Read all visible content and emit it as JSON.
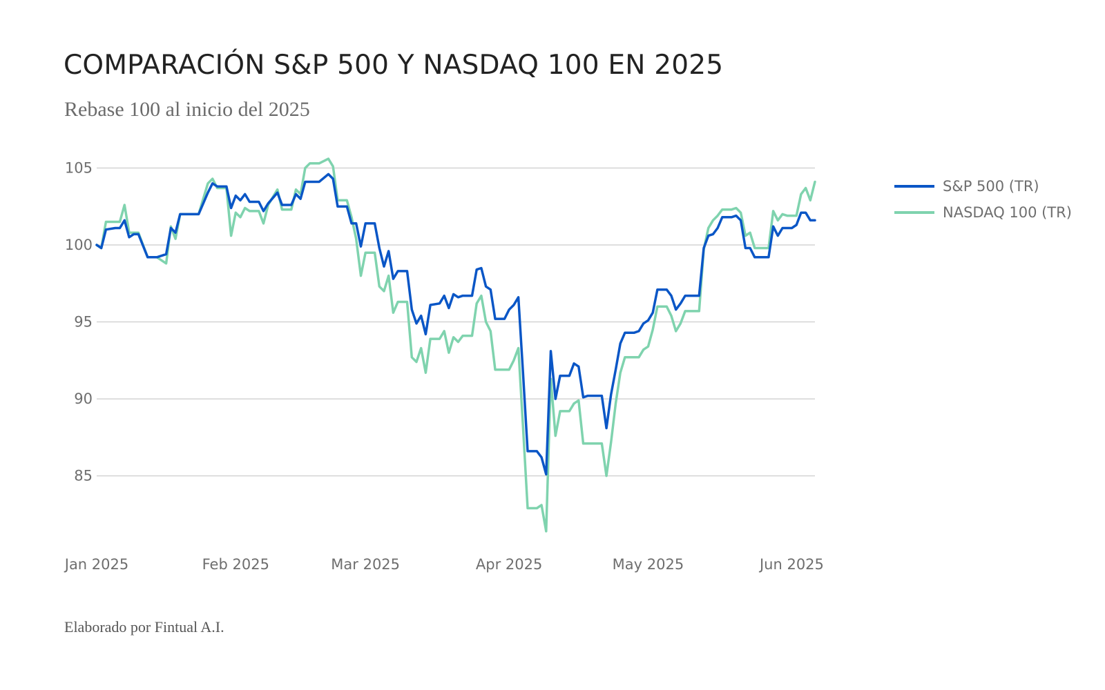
{
  "chart_data": {
    "type": "line",
    "title": "COMPARACIÓN S&P 500 Y NASDAQ 100 EN 2025",
    "subtitle": "Rebase 100 al inicio del 2025",
    "footer": "Elaborado por Fintual A.I.",
    "xlabel": "",
    "ylabel": "",
    "ylim": [
      80.5,
      106.5
    ],
    "y_ticks": [
      85,
      90,
      95,
      100,
      105
    ],
    "x_ticks": [
      {
        "label": "Jan 2025",
        "date": "2025-01-02"
      },
      {
        "label": "Feb 2025",
        "date": "2025-02-01"
      },
      {
        "label": "Mar 2025",
        "date": "2025-03-01"
      },
      {
        "label": "Apr 2025",
        "date": "2025-04-01"
      },
      {
        "label": "May 2025",
        "date": "2025-05-01"
      },
      {
        "label": "Jun 2025",
        "date": "2025-06-01"
      }
    ],
    "x_start": "2025-01-02",
    "x_end": "2025-06-06",
    "grid": true,
    "legend_position": "right",
    "series": [
      {
        "name": "S&P 500 (TR)",
        "color": "#0a56c6",
        "points": [
          [
            "2025-01-02",
            100.0
          ],
          [
            "2025-01-03",
            99.8
          ],
          [
            "2025-01-04",
            101.0
          ],
          [
            "2025-01-06",
            101.1
          ],
          [
            "2025-01-07",
            101.1
          ],
          [
            "2025-01-08",
            101.6
          ],
          [
            "2025-01-09",
            100.5
          ],
          [
            "2025-01-10",
            100.7
          ],
          [
            "2025-01-11",
            100.7
          ],
          [
            "2025-01-13",
            99.2
          ],
          [
            "2025-01-15",
            99.2
          ],
          [
            "2025-01-17",
            99.4
          ],
          [
            "2025-01-18",
            101.1
          ],
          [
            "2025-01-19",
            100.8
          ],
          [
            "2025-01-20",
            102.0
          ],
          [
            "2025-01-22",
            102.0
          ],
          [
            "2025-01-24",
            102.0
          ],
          [
            "2025-01-26",
            103.4
          ],
          [
            "2025-01-27",
            104.0
          ],
          [
            "2025-01-28",
            103.8
          ],
          [
            "2025-01-30",
            103.8
          ],
          [
            "2025-01-31",
            102.4
          ],
          [
            "2025-02-01",
            103.2
          ],
          [
            "2025-02-02",
            102.9
          ],
          [
            "2025-02-03",
            103.3
          ],
          [
            "2025-02-04",
            102.8
          ],
          [
            "2025-02-06",
            102.8
          ],
          [
            "2025-02-07",
            102.2
          ],
          [
            "2025-02-08",
            102.7
          ],
          [
            "2025-02-10",
            103.4
          ],
          [
            "2025-02-11",
            102.6
          ],
          [
            "2025-02-13",
            102.6
          ],
          [
            "2025-02-14",
            103.3
          ],
          [
            "2025-02-15",
            103.0
          ],
          [
            "2025-02-16",
            104.1
          ],
          [
            "2025-02-19",
            104.1
          ],
          [
            "2025-02-21",
            104.6
          ],
          [
            "2025-02-22",
            104.3
          ],
          [
            "2025-02-23",
            102.5
          ],
          [
            "2025-02-25",
            102.5
          ],
          [
            "2025-02-26",
            101.4
          ],
          [
            "2025-02-27",
            101.4
          ],
          [
            "2025-02-28",
            99.9
          ],
          [
            "2025-03-01",
            101.4
          ],
          [
            "2025-03-03",
            101.4
          ],
          [
            "2025-03-04",
            99.8
          ],
          [
            "2025-03-05",
            98.6
          ],
          [
            "2025-03-06",
            99.6
          ],
          [
            "2025-03-07",
            97.8
          ],
          [
            "2025-03-08",
            98.3
          ],
          [
            "2025-03-10",
            98.3
          ],
          [
            "2025-03-11",
            95.8
          ],
          [
            "2025-03-12",
            94.9
          ],
          [
            "2025-03-13",
            95.4
          ],
          [
            "2025-03-14",
            94.2
          ],
          [
            "2025-03-15",
            96.1
          ],
          [
            "2025-03-17",
            96.2
          ],
          [
            "2025-03-18",
            96.7
          ],
          [
            "2025-03-19",
            95.9
          ],
          [
            "2025-03-20",
            96.8
          ],
          [
            "2025-03-21",
            96.6
          ],
          [
            "2025-03-22",
            96.7
          ],
          [
            "2025-03-24",
            96.7
          ],
          [
            "2025-03-25",
            98.4
          ],
          [
            "2025-03-26",
            98.5
          ],
          [
            "2025-03-27",
            97.3
          ],
          [
            "2025-03-28",
            97.1
          ],
          [
            "2025-03-29",
            95.2
          ],
          [
            "2025-03-31",
            95.2
          ],
          [
            "2025-04-01",
            95.8
          ],
          [
            "2025-04-02",
            96.1
          ],
          [
            "2025-04-03",
            96.6
          ],
          [
            "2025-04-04",
            91.7
          ],
          [
            "2025-04-05",
            86.6
          ],
          [
            "2025-04-07",
            86.6
          ],
          [
            "2025-04-08",
            86.2
          ],
          [
            "2025-04-09",
            85.1
          ],
          [
            "2025-04-10",
            93.1
          ],
          [
            "2025-04-11",
            90.0
          ],
          [
            "2025-04-12",
            91.5
          ],
          [
            "2025-04-14",
            91.5
          ],
          [
            "2025-04-15",
            92.3
          ],
          [
            "2025-04-16",
            92.1
          ],
          [
            "2025-04-17",
            90.1
          ],
          [
            "2025-04-18",
            90.2
          ],
          [
            "2025-04-21",
            90.2
          ],
          [
            "2025-04-22",
            88.1
          ],
          [
            "2025-04-23",
            90.3
          ],
          [
            "2025-04-24",
            91.9
          ],
          [
            "2025-04-25",
            93.6
          ],
          [
            "2025-04-26",
            94.3
          ],
          [
            "2025-04-28",
            94.3
          ],
          [
            "2025-04-29",
            94.4
          ],
          [
            "2025-04-30",
            94.9
          ],
          [
            "2025-05-01",
            95.1
          ],
          [
            "2025-05-02",
            95.6
          ],
          [
            "2025-05-03",
            97.1
          ],
          [
            "2025-05-05",
            97.1
          ],
          [
            "2025-05-06",
            96.7
          ],
          [
            "2025-05-07",
            95.8
          ],
          [
            "2025-05-08",
            96.2
          ],
          [
            "2025-05-09",
            96.7
          ],
          [
            "2025-05-12",
            96.7
          ],
          [
            "2025-05-13",
            99.8
          ],
          [
            "2025-05-14",
            100.6
          ],
          [
            "2025-05-15",
            100.7
          ],
          [
            "2025-05-16",
            101.1
          ],
          [
            "2025-05-17",
            101.8
          ],
          [
            "2025-05-19",
            101.8
          ],
          [
            "2025-05-20",
            101.9
          ],
          [
            "2025-05-21",
            101.6
          ],
          [
            "2025-05-22",
            99.8
          ],
          [
            "2025-05-23",
            99.8
          ],
          [
            "2025-05-24",
            99.2
          ],
          [
            "2025-05-27",
            99.2
          ],
          [
            "2025-05-28",
            101.2
          ],
          [
            "2025-05-29",
            100.6
          ],
          [
            "2025-05-30",
            101.1
          ],
          [
            "2025-06-01",
            101.1
          ],
          [
            "2025-06-02",
            101.3
          ],
          [
            "2025-06-03",
            102.1
          ],
          [
            "2025-06-04",
            102.1
          ],
          [
            "2025-06-05",
            101.6
          ],
          [
            "2025-06-06",
            101.6
          ]
        ]
      },
      {
        "name": "NASDAQ 100 (TR)",
        "color": "#7fd3ae",
        "points": [
          [
            "2025-01-02",
            100.0
          ],
          [
            "2025-01-03",
            99.8
          ],
          [
            "2025-01-04",
            101.5
          ],
          [
            "2025-01-06",
            101.5
          ],
          [
            "2025-01-07",
            101.5
          ],
          [
            "2025-01-08",
            102.6
          ],
          [
            "2025-01-09",
            100.8
          ],
          [
            "2025-01-10",
            100.8
          ],
          [
            "2025-01-11",
            100.8
          ],
          [
            "2025-01-13",
            99.2
          ],
          [
            "2025-01-15",
            99.2
          ],
          [
            "2025-01-17",
            98.8
          ],
          [
            "2025-01-18",
            101.2
          ],
          [
            "2025-01-19",
            100.4
          ],
          [
            "2025-01-20",
            102.0
          ],
          [
            "2025-01-22",
            102.0
          ],
          [
            "2025-01-24",
            102.0
          ],
          [
            "2025-01-26",
            104.0
          ],
          [
            "2025-01-27",
            104.3
          ],
          [
            "2025-01-28",
            103.7
          ],
          [
            "2025-01-30",
            103.7
          ],
          [
            "2025-01-31",
            100.6
          ],
          [
            "2025-02-01",
            102.1
          ],
          [
            "2025-02-02",
            101.8
          ],
          [
            "2025-02-03",
            102.4
          ],
          [
            "2025-02-04",
            102.2
          ],
          [
            "2025-02-06",
            102.2
          ],
          [
            "2025-02-07",
            101.4
          ],
          [
            "2025-02-08",
            102.6
          ],
          [
            "2025-02-10",
            103.6
          ],
          [
            "2025-02-11",
            102.3
          ],
          [
            "2025-02-13",
            102.3
          ],
          [
            "2025-02-14",
            103.6
          ],
          [
            "2025-02-15",
            103.3
          ],
          [
            "2025-02-16",
            105.0
          ],
          [
            "2025-02-17",
            105.3
          ],
          [
            "2025-02-19",
            105.3
          ],
          [
            "2025-02-21",
            105.6
          ],
          [
            "2025-02-22",
            105.1
          ],
          [
            "2025-02-23",
            102.9
          ],
          [
            "2025-02-25",
            102.9
          ],
          [
            "2025-02-26",
            101.8
          ],
          [
            "2025-02-27",
            100.4
          ],
          [
            "2025-02-28",
            98.0
          ],
          [
            "2025-03-01",
            99.5
          ],
          [
            "2025-03-03",
            99.5
          ],
          [
            "2025-03-04",
            97.3
          ],
          [
            "2025-03-05",
            97.0
          ],
          [
            "2025-03-06",
            98.0
          ],
          [
            "2025-03-07",
            95.6
          ],
          [
            "2025-03-08",
            96.3
          ],
          [
            "2025-03-10",
            96.3
          ],
          [
            "2025-03-11",
            92.7
          ],
          [
            "2025-03-12",
            92.4
          ],
          [
            "2025-03-13",
            93.3
          ],
          [
            "2025-03-14",
            91.7
          ],
          [
            "2025-03-15",
            93.9
          ],
          [
            "2025-03-17",
            93.9
          ],
          [
            "2025-03-18",
            94.4
          ],
          [
            "2025-03-19",
            93.0
          ],
          [
            "2025-03-20",
            94.0
          ],
          [
            "2025-03-21",
            93.7
          ],
          [
            "2025-03-22",
            94.1
          ],
          [
            "2025-03-24",
            94.1
          ],
          [
            "2025-03-25",
            96.2
          ],
          [
            "2025-03-26",
            96.7
          ],
          [
            "2025-03-27",
            95.0
          ],
          [
            "2025-03-28",
            94.4
          ],
          [
            "2025-03-29",
            91.9
          ],
          [
            "2025-03-31",
            91.9
          ],
          [
            "2025-04-01",
            91.9
          ],
          [
            "2025-04-02",
            92.5
          ],
          [
            "2025-04-03",
            93.3
          ],
          [
            "2025-04-04",
            88.2
          ],
          [
            "2025-04-05",
            82.9
          ],
          [
            "2025-04-07",
            82.9
          ],
          [
            "2025-04-08",
            83.1
          ],
          [
            "2025-04-09",
            81.4
          ],
          [
            "2025-04-10",
            91.3
          ],
          [
            "2025-04-11",
            87.6
          ],
          [
            "2025-04-12",
            89.2
          ],
          [
            "2025-04-14",
            89.2
          ],
          [
            "2025-04-15",
            89.7
          ],
          [
            "2025-04-16",
            89.9
          ],
          [
            "2025-04-17",
            87.1
          ],
          [
            "2025-04-18",
            87.1
          ],
          [
            "2025-04-21",
            87.1
          ],
          [
            "2025-04-22",
            85.0
          ],
          [
            "2025-04-23",
            87.2
          ],
          [
            "2025-04-24",
            89.7
          ],
          [
            "2025-04-25",
            91.7
          ],
          [
            "2025-04-26",
            92.7
          ],
          [
            "2025-04-28",
            92.7
          ],
          [
            "2025-04-29",
            92.7
          ],
          [
            "2025-04-30",
            93.2
          ],
          [
            "2025-05-01",
            93.4
          ],
          [
            "2025-05-02",
            94.5
          ],
          [
            "2025-05-03",
            96.0
          ],
          [
            "2025-05-05",
            96.0
          ],
          [
            "2025-05-06",
            95.4
          ],
          [
            "2025-05-07",
            94.4
          ],
          [
            "2025-05-08",
            94.9
          ],
          [
            "2025-05-09",
            95.7
          ],
          [
            "2025-05-12",
            95.7
          ],
          [
            "2025-05-13",
            99.7
          ],
          [
            "2025-05-14",
            101.1
          ],
          [
            "2025-05-15",
            101.6
          ],
          [
            "2025-05-16",
            101.9
          ],
          [
            "2025-05-17",
            102.3
          ],
          [
            "2025-05-19",
            102.3
          ],
          [
            "2025-05-20",
            102.4
          ],
          [
            "2025-05-21",
            102.1
          ],
          [
            "2025-05-22",
            100.6
          ],
          [
            "2025-05-23",
            100.8
          ],
          [
            "2025-05-24",
            99.8
          ],
          [
            "2025-05-27",
            99.8
          ],
          [
            "2025-05-28",
            102.2
          ],
          [
            "2025-05-29",
            101.6
          ],
          [
            "2025-05-30",
            102.0
          ],
          [
            "2025-05-31",
            101.9
          ],
          [
            "2025-06-02",
            101.9
          ],
          [
            "2025-06-03",
            103.3
          ],
          [
            "2025-06-04",
            103.7
          ],
          [
            "2025-06-05",
            102.9
          ],
          [
            "2025-06-06",
            104.1
          ]
        ]
      }
    ]
  }
}
